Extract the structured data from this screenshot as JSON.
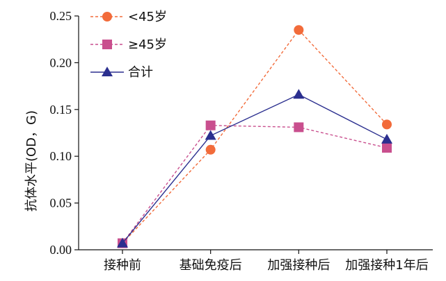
{
  "chart_data": {
    "type": "line",
    "categories": [
      "接种前",
      "基础免疫后",
      "加强接种后",
      "加强接种1年后"
    ],
    "ylabel": "抗体水平(OD，G)",
    "xlabel": "",
    "title": "",
    "ylim": [
      0,
      0.25
    ],
    "yticks": [
      "0.00",
      "0.05",
      "0.10",
      "0.15",
      "0.20",
      "0.25"
    ],
    "grid": false,
    "legend_position": "top-left",
    "series": [
      {
        "name": "<45岁",
        "values": [
          0.007,
          0.107,
          0.235,
          0.134
        ],
        "color": "#f26b3a",
        "marker": "circle",
        "line": "dashed"
      },
      {
        "name": "≥45岁",
        "values": [
          0.007,
          0.133,
          0.131,
          0.109
        ],
        "color": "#c94f8e",
        "marker": "square",
        "line": "dashed"
      },
      {
        "name": "合计",
        "values": [
          0.007,
          0.122,
          0.166,
          0.118
        ],
        "color": "#2b2f8f",
        "marker": "triangle",
        "line": "solid"
      }
    ]
  }
}
